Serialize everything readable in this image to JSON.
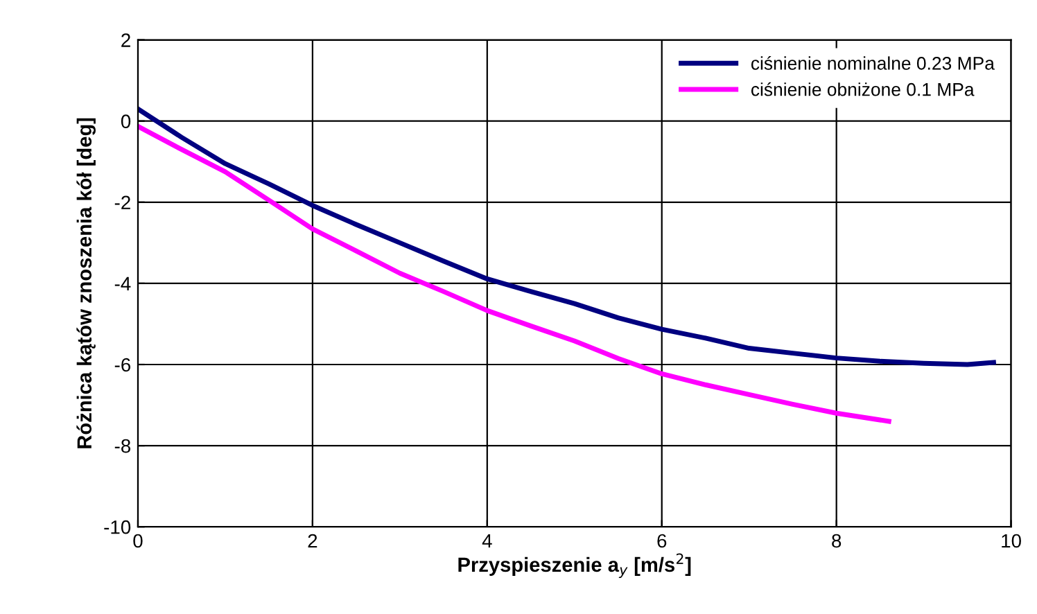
{
  "chart_data": {
    "type": "line",
    "xlabel": "Przyspieszenie a$_{y}$ [m/s$^{2}$]",
    "ylabel": "Różnica kątów znoszenia kół [deg]",
    "xlim": [
      0,
      10
    ],
    "xticks": [
      0,
      2,
      4,
      6,
      8,
      10
    ],
    "ylim": [
      -10,
      2
    ],
    "yticks": [
      -10,
      -8,
      -6,
      -4,
      -2,
      0,
      2
    ],
    "grid": true,
    "legend": "top right",
    "marker": "none",
    "line_style": "solid",
    "series": [
      {
        "name": "ciśnienie nominalne 0.23 MPa",
        "color": "#000080",
        "x": [
          0,
          0.5,
          1,
          1.5,
          2,
          2.5,
          3,
          3.5,
          4,
          4.5,
          5,
          5.5,
          6,
          6.5,
          7,
          7.5,
          8,
          8.5,
          9,
          9.5,
          9.8
        ],
        "values": [
          0.3,
          -0.4,
          -1.05,
          -1.55,
          -2.08,
          -2.55,
          -3.0,
          -3.45,
          -3.89,
          -4.2,
          -4.5,
          -4.85,
          -5.13,
          -5.35,
          -5.6,
          -5.72,
          -5.84,
          -5.92,
          -5.97,
          -6.0,
          -5.95
        ]
      },
      {
        "name": "ciśnienie obniżone 0.1 MPa",
        "color": "#ff00ff",
        "x": [
          0,
          0.5,
          1,
          1.5,
          2,
          2.5,
          3,
          3.5,
          4,
          4.5,
          5,
          5.5,
          6,
          6.5,
          7,
          7.5,
          8,
          8.6
        ],
        "values": [
          -0.13,
          -0.7,
          -1.25,
          -1.95,
          -2.66,
          -3.2,
          -3.75,
          -4.2,
          -4.67,
          -5.05,
          -5.42,
          -5.85,
          -6.23,
          -6.5,
          -6.74,
          -6.98,
          -7.2,
          -7.4
        ]
      }
    ]
  }
}
